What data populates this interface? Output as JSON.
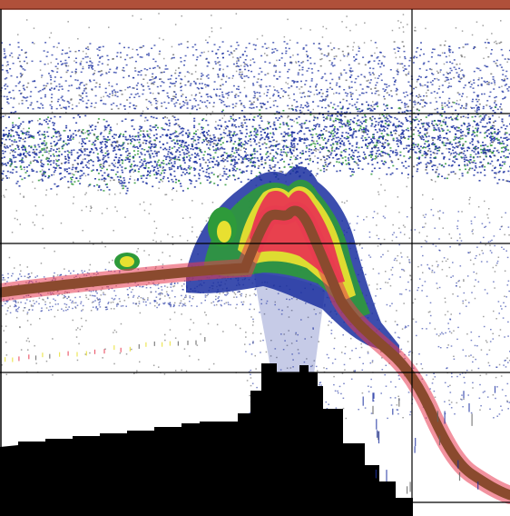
{
  "palette": {
    "background": "#ffffff",
    "surface_band": "#b0503a",
    "weak_echo": "#1a2fa0",
    "medium_echo": "#2e9a3a",
    "strong_echo": "#e8e030",
    "very_strong_echo": "#e83850",
    "bottom_trace": "#8a4a2e",
    "seabed_fill": "#000000",
    "grid_line": "#000000",
    "noise_speck": "#606060"
  },
  "icons": {
    "echogram": "sonar-echogram"
  }
}
